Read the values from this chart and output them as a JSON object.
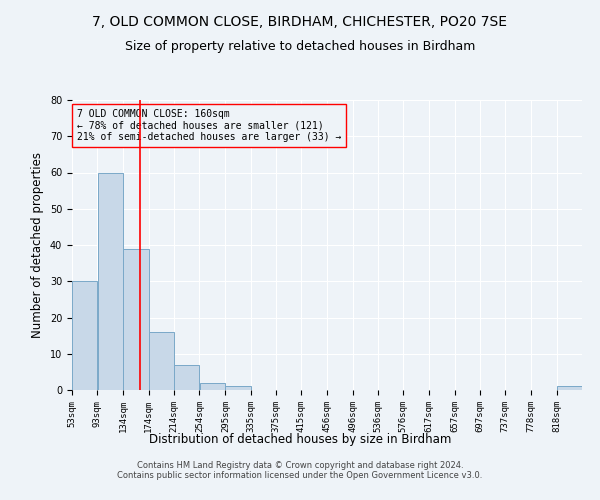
{
  "title1": "7, OLD COMMON CLOSE, BIRDHAM, CHICHESTER, PO20 7SE",
  "title2": "Size of property relative to detached houses in Birdham",
  "xlabel": "Distribution of detached houses by size in Birdham",
  "ylabel": "Number of detached properties",
  "annotation_line1": "7 OLD COMMON CLOSE: 160sqm",
  "annotation_line2": "← 78% of detached houses are smaller (121)",
  "annotation_line3": "21% of semi-detached houses are larger (33) →",
  "footer1": "Contains HM Land Registry data © Crown copyright and database right 2024.",
  "footer2": "Contains public sector information licensed under the Open Government Licence v3.0.",
  "bin_edges": [
    53,
    93,
    134,
    174,
    214,
    254,
    295,
    335,
    375,
    415,
    456,
    496,
    536,
    576,
    617,
    657,
    697,
    737,
    778,
    818,
    858
  ],
  "bar_heights": [
    30,
    60,
    39,
    16,
    7,
    2,
    1,
    0,
    0,
    0,
    0,
    0,
    0,
    0,
    0,
    0,
    0,
    0,
    0,
    1
  ],
  "bar_color": "#c8d8e8",
  "bar_edge_color": "#7aa8c8",
  "vline_x": 160,
  "vline_color": "red",
  "annotation_box_color": "red",
  "ylim": [
    0,
    80
  ],
  "yticks": [
    0,
    10,
    20,
    30,
    40,
    50,
    60,
    70,
    80
  ],
  "background_color": "#eef3f8",
  "grid_color": "#ffffff",
  "title1_fontsize": 10,
  "title2_fontsize": 9,
  "xlabel_fontsize": 8.5,
  "ylabel_fontsize": 8.5,
  "annotation_fontsize": 7,
  "tick_fontsize": 6.5,
  "footer_fontsize": 6
}
